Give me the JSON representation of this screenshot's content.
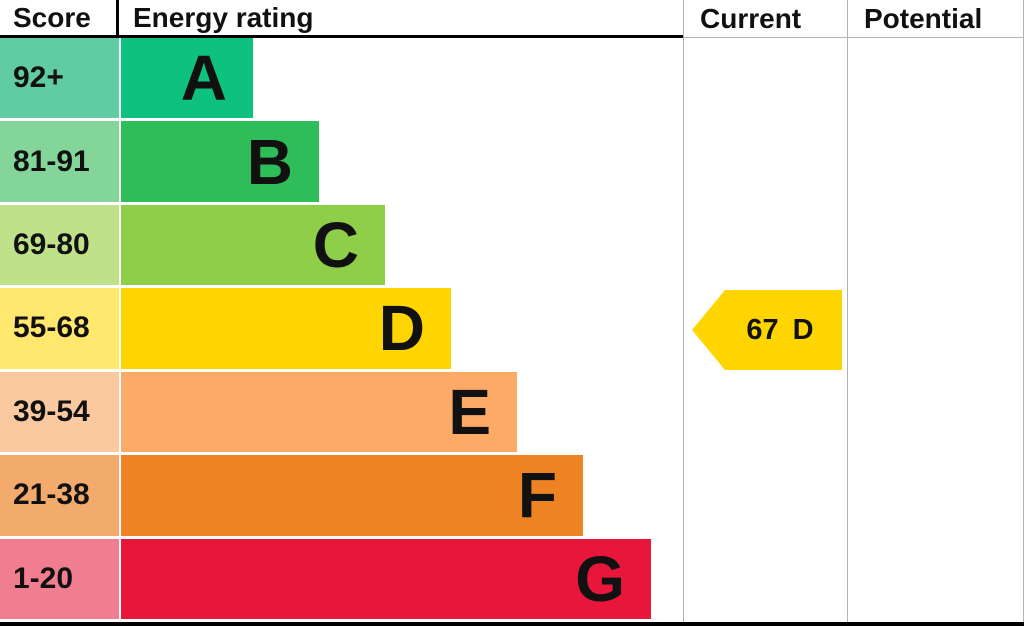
{
  "header": {
    "score": "Score",
    "rating": "Energy rating",
    "current": "Current",
    "potential": "Potential"
  },
  "chart_data": {
    "type": "bar",
    "title": "Energy rating",
    "columns": [
      "Score",
      "Energy rating",
      "Current",
      "Potential"
    ],
    "bands": [
      {
        "score_range": "92+",
        "letter": "A",
        "bar_color": "#0fc17e",
        "score_bg": "#61ccA4"
      },
      {
        "score_range": "81-91",
        "letter": "B",
        "bar_color": "#2ebd59",
        "score_bg": "#83d59a"
      },
      {
        "score_range": "69-80",
        "letter": "C",
        "bar_color": "#8fce49",
        "score_bg": "#bfe18a"
      },
      {
        "score_range": "55-68",
        "letter": "D",
        "bar_color": "#ffd500",
        "score_bg": "#ffe86d"
      },
      {
        "score_range": "39-54",
        "letter": "E",
        "bar_color": "#fcaa65",
        "score_bg": "#fbc9a0"
      },
      {
        "score_range": "21-38",
        "letter": "F",
        "bar_color": "#ee8323",
        "score_bg": "#f3aa6d"
      },
      {
        "score_range": "1-20",
        "letter": "G",
        "bar_color": "#e9163c",
        "score_bg": "#f17e90"
      }
    ],
    "current": {
      "score": "67",
      "letter": "D",
      "color": "#ffd500"
    }
  }
}
